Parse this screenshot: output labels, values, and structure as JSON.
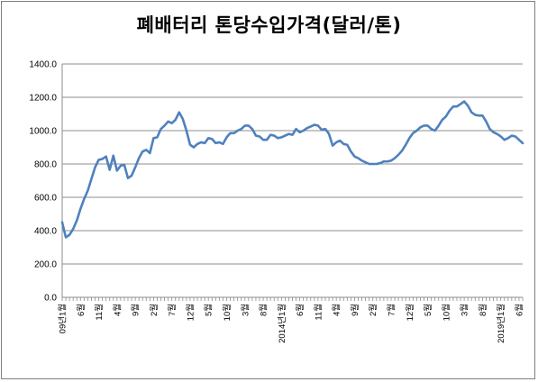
{
  "chart_data": {
    "type": "line",
    "title": "폐배터리 톤당수입가격(달러/톤)",
    "xlabel": "",
    "ylabel": "",
    "ylim": [
      0,
      1400
    ],
    "y_ticks": [
      "0.0",
      "200.0",
      "400.0",
      "600.0",
      "800.0",
      "1000.0",
      "1200.0",
      "1400.0"
    ],
    "grid": "horizontal",
    "legend": "none",
    "line_color": "#4f81bd",
    "x_tick_labels": [
      {
        "index": 0,
        "label": "09년1월"
      },
      {
        "index": 5,
        "label": "6월"
      },
      {
        "index": 10,
        "label": "11월"
      },
      {
        "index": 15,
        "label": "4월"
      },
      {
        "index": 20,
        "label": "9월"
      },
      {
        "index": 25,
        "label": "2월"
      },
      {
        "index": 30,
        "label": "7월"
      },
      {
        "index": 35,
        "label": "12월"
      },
      {
        "index": 40,
        "label": "5월"
      },
      {
        "index": 45,
        "label": "10월"
      },
      {
        "index": 50,
        "label": "3월"
      },
      {
        "index": 55,
        "label": "8월"
      },
      {
        "index": 60,
        "label": "2014년1월"
      },
      {
        "index": 65,
        "label": "6월"
      },
      {
        "index": 70,
        "label": "11월"
      },
      {
        "index": 75,
        "label": "4월"
      },
      {
        "index": 80,
        "label": "9월"
      },
      {
        "index": 85,
        "label": "2월"
      },
      {
        "index": 90,
        "label": "7월"
      },
      {
        "index": 95,
        "label": "12월"
      },
      {
        "index": 100,
        "label": "5월"
      },
      {
        "index": 105,
        "label": "10월"
      },
      {
        "index": 110,
        "label": "3월"
      },
      {
        "index": 115,
        "label": "8월"
      },
      {
        "index": 120,
        "label": "2019년1월"
      },
      {
        "index": 125,
        "label": "6월"
      }
    ],
    "series": [
      {
        "values": [
          450,
          360,
          375,
          410,
          460,
          530,
          590,
          640,
          710,
          780,
          825,
          830,
          845,
          765,
          850,
          760,
          790,
          795,
          715,
          730,
          780,
          835,
          875,
          885,
          865,
          955,
          960,
          1010,
          1030,
          1055,
          1045,
          1065,
          1110,
          1070,
          1000,
          915,
          900,
          920,
          930,
          925,
          955,
          950,
          925,
          930,
          920,
          960,
          985,
          985,
          1000,
          1010,
          1030,
          1030,
          1010,
          970,
          965,
          945,
          945,
          975,
          970,
          955,
          960,
          970,
          980,
          975,
          1010,
          990,
          1000,
          1015,
          1025,
          1035,
          1030,
          1005,
          1010,
          980,
          910,
          930,
          940,
          920,
          915,
          875,
          845,
          835,
          820,
          810,
          800,
          800,
          800,
          805,
          815,
          815,
          820,
          835,
          855,
          880,
          915,
          955,
          985,
          1000,
          1020,
          1030,
          1030,
          1010,
          1000,
          1030,
          1065,
          1085,
          1120,
          1145,
          1145,
          1160,
          1175,
          1150,
          1110,
          1095,
          1090,
          1090,
          1055,
          1010,
          990,
          980,
          965,
          945,
          955,
          970,
          965,
          945,
          925
        ]
      }
    ]
  }
}
